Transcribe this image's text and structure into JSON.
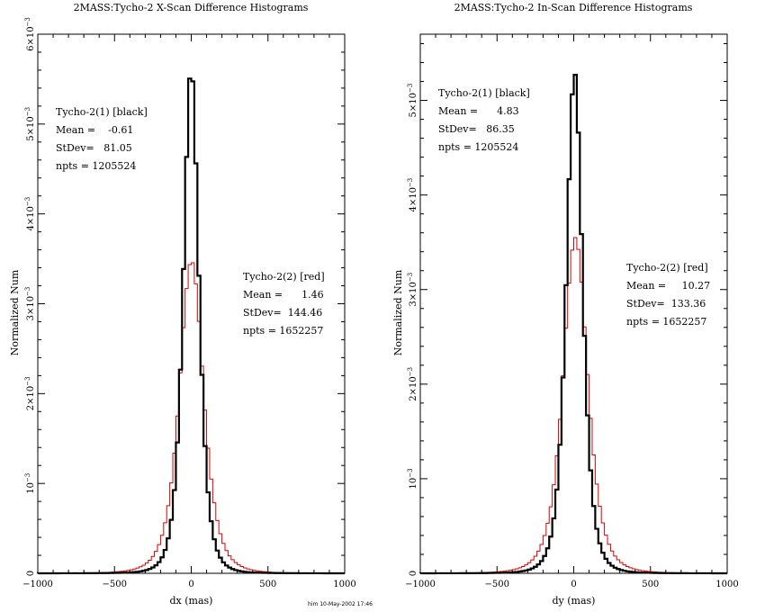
{
  "chart_data": [
    {
      "type": "histogram",
      "title": "2MASS:Tycho-2 X-Scan Difference Histograms",
      "xlabel": "dx (mas)",
      "ylabel": "Normalized Num",
      "xlim": [
        -1000,
        1000
      ],
      "ylim": [
        0,
        0.006
      ],
      "xticks": [
        -1000,
        -500,
        0,
        500,
        1000
      ],
      "xtick_labels": [
        "−1000",
        "−500",
        "0",
        "500",
        "1000"
      ],
      "yticks": [
        {
          "value": 0,
          "mant": "0",
          "exp": ""
        },
        {
          "value": 0.001,
          "mant": "10",
          "exp": "−3"
        },
        {
          "value": 0.002,
          "mant": "2×10",
          "exp": "−3"
        },
        {
          "value": 0.003,
          "mant": "3×10",
          "exp": "−3"
        },
        {
          "value": 0.004,
          "mant": "4×10",
          "exp": "−3"
        },
        {
          "value": 0.005,
          "mant": "5×10",
          "exp": "−3"
        },
        {
          "value": 0.006,
          "mant": "6×10",
          "exp": "−3"
        }
      ],
      "series": [
        {
          "name": "Tycho-2(1) [black]",
          "color": "#000000",
          "stroke": 2.2,
          "mean": -0.61,
          "sigma": 72,
          "peak": 0.00562
        },
        {
          "name": "Tycho-2(2) [red]",
          "color": "#dd0000",
          "stroke": 1.0,
          "mean": 1.46,
          "sigma": 112,
          "peak": 0.00348
        }
      ],
      "stats": [
        [
          "Tycho-2(1) [black]",
          "Mean =    -0.61",
          "StDev=   81.05",
          "npts = 1205524"
        ],
        [
          "Tycho-2(2) [red]",
          "Mean =      1.46",
          "StDev=  144.46",
          "npts = 1652257"
        ]
      ]
    },
    {
      "type": "histogram",
      "title": "2MASS:Tycho-2 In-Scan Difference Histograms",
      "xlabel": "dy (mas)",
      "ylabel": "Normalized Num",
      "xlim": [
        -1000,
        1000
      ],
      "ylim": [
        0,
        0.0057
      ],
      "xticks": [
        -1000,
        -500,
        0,
        500,
        1000
      ],
      "xtick_labels": [
        "−1000",
        "−500",
        "0",
        "500",
        "1000"
      ],
      "yticks": [
        {
          "value": 0,
          "mant": "0",
          "exp": ""
        },
        {
          "value": 0.001,
          "mant": "10",
          "exp": "−3"
        },
        {
          "value": 0.002,
          "mant": "2×10",
          "exp": "−3"
        },
        {
          "value": 0.003,
          "mant": "3×10",
          "exp": "−3"
        },
        {
          "value": 0.004,
          "mant": "4×10",
          "exp": "−3"
        },
        {
          "value": 0.005,
          "mant": "5×10",
          "exp": "−3"
        }
      ],
      "series": [
        {
          "name": "Tycho-2(1) [black]",
          "color": "#000000",
          "stroke": 2.2,
          "mean": 4.83,
          "sigma": 76,
          "peak": 0.0053
        },
        {
          "name": "Tycho-2(2) [red]",
          "color": "#dd0000",
          "stroke": 1.0,
          "mean": 10.27,
          "sigma": 114,
          "peak": 0.00355
        }
      ],
      "stats": [
        [
          "Tycho-2(1) [black]",
          "Mean =      4.83",
          "StDev=   86.35",
          "npts = 1205524"
        ],
        [
          "Tycho-2(2) [red]",
          "Mean =     10.27",
          "StDev=  133.36",
          "npts = 1652257"
        ]
      ]
    }
  ],
  "footer": {
    "stamp": "him 10-May-2002 17:46"
  }
}
